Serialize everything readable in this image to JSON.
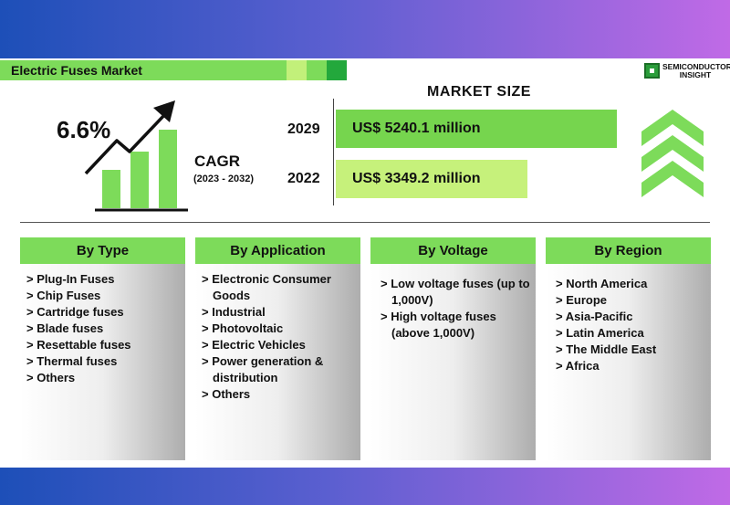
{
  "title": "Electric Fuses Market",
  "brand": {
    "logo_lines": [
      "SEMICONDUCTOR",
      "INSIGHT"
    ]
  },
  "cagr": {
    "value": "6.6%",
    "label": "CAGR",
    "period": "(2023 - 2032)"
  },
  "market_size": {
    "heading": "MARKET SIZE",
    "rows": [
      {
        "year": "2029",
        "value": "US$ 5240.1 million"
      },
      {
        "year": "2022",
        "value": "US$ 3349.2 million"
      }
    ]
  },
  "segments": [
    {
      "title": "By Type",
      "items": [
        "Plug-In Fuses",
        "Chip Fuses",
        "Cartridge fuses",
        "Blade fuses",
        "Resettable fuses",
        "Thermal fuses",
        "Others"
      ]
    },
    {
      "title": "By Application",
      "items": [
        "Electronic Consumer Goods",
        "Industrial",
        "Photovoltaic",
        "Electric Vehicles",
        "Power generation & distribution",
        "Others"
      ]
    },
    {
      "title": "By Voltage",
      "items": [
        "Low voltage fuses (up to 1,000V)",
        "High voltage fuses (above 1,000V)"
      ]
    },
    {
      "title": "By Region",
      "items": [
        "North America",
        "Europe",
        "Asia-Pacific",
        "Latin America",
        "The Middle East",
        "Africa"
      ]
    }
  ],
  "colors": {
    "accent_green": "#7ddb5a",
    "bar_2029": "#76d54e",
    "bar_2022": "#c6f17b",
    "band_left": "#1d4fb8",
    "band_right": "#c06ae6"
  }
}
